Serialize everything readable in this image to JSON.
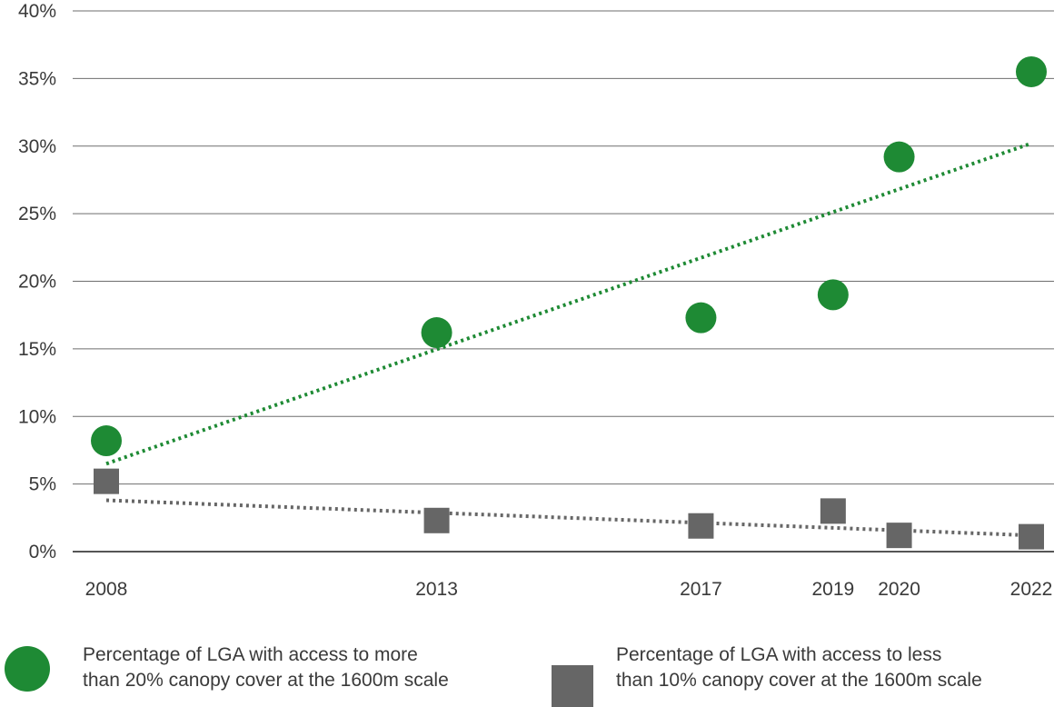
{
  "chart_data": {
    "type": "scatter",
    "x": [
      2008,
      2013,
      2017,
      2019,
      2020,
      2022
    ],
    "x_tick_labels": [
      "2008",
      "2013",
      "2017",
      "2019",
      "2020",
      "2022"
    ],
    "y_tick_labels": [
      "0%",
      "5%",
      "10%",
      "15%",
      "20%",
      "25%",
      "30%",
      "35%",
      "40%"
    ],
    "y_ticks": [
      0,
      5,
      10,
      15,
      20,
      25,
      30,
      35,
      40
    ],
    "ylim": [
      0,
      40
    ],
    "xlim": [
      2008,
      2022
    ],
    "grid": "horizontal",
    "legend_position": "bottom",
    "series": [
      {
        "name": "Percentage of LGA with access to more than 20% canopy cover at the 1600m scale",
        "marker": "circle",
        "color": "#1e8a34",
        "values": [
          8.2,
          16.2,
          17.3,
          19.0,
          29.2,
          35.5
        ],
        "trendline": {
          "style": "dotted",
          "start": 6.5,
          "end": 30.2
        }
      },
      {
        "name": "Percentage of LGA with access to less than 10% canopy cover at the 1600m scale",
        "marker": "square",
        "color": "#666666",
        "values": [
          5.2,
          2.3,
          1.9,
          3.0,
          1.2,
          1.1
        ],
        "trendline": {
          "style": "dotted",
          "start": 3.8,
          "end": 1.2
        }
      }
    ]
  },
  "legend": [
    {
      "label": "Percentage of LGA with access to more\nthan 20% canopy cover at the 1600m scale",
      "icon": "green-circle"
    },
    {
      "label": "Percentage of LGA with access to less\nthan 10% canopy cover at the 1600m scale",
      "icon": "gray-square"
    }
  ]
}
